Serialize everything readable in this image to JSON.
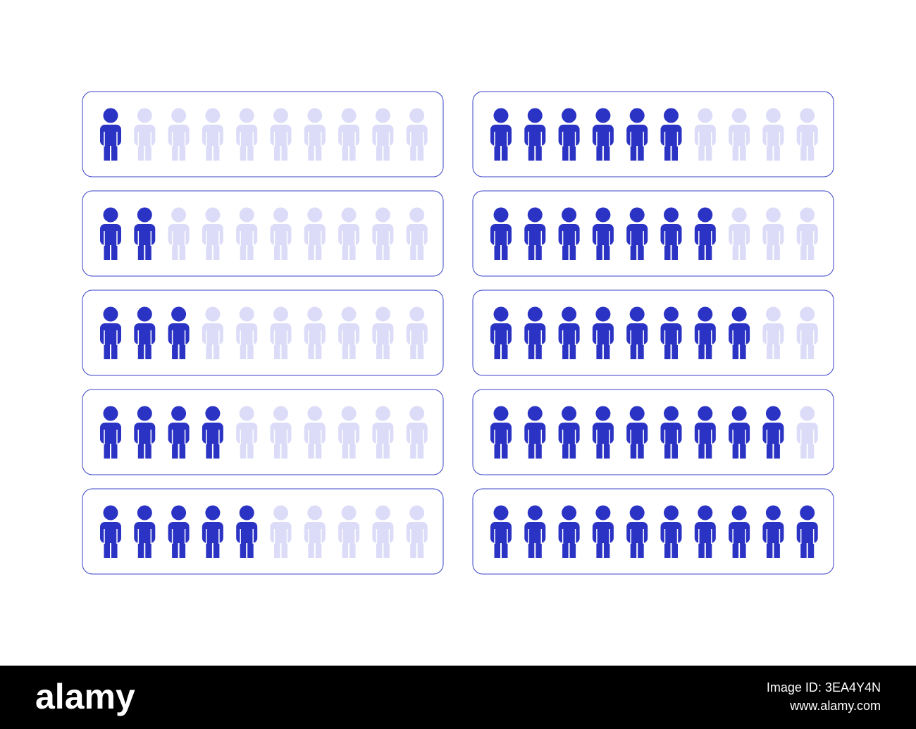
{
  "chart_data": {
    "type": "pictogram",
    "values": [
      1,
      2,
      3,
      4,
      5,
      6,
      7,
      8,
      9,
      10
    ],
    "total": 10,
    "color": "#2b33c4",
    "empty_color": "#dcdcf8",
    "border_color": "#3b43c8"
  },
  "watermark": {
    "brand": "alamy",
    "image_id": "Image ID: 3EA4Y4N",
    "url": "www.alamy.com"
  }
}
